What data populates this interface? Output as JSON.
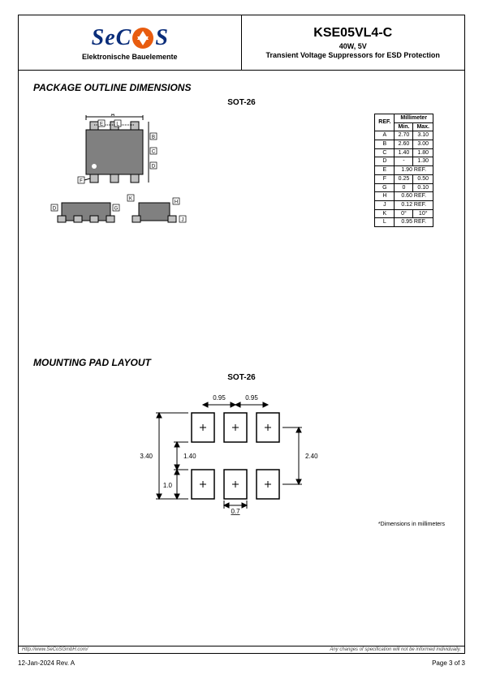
{
  "header": {
    "logo_subtitle": "Elektronische Bauelemente",
    "part_number": "KSE05VL4-C",
    "spec": "40W, 5V",
    "description": "Transient Voltage Suppressors for ESD Protection"
  },
  "sections": {
    "outline": {
      "title": "PACKAGE OUTLINE DIMENSIONS",
      "subtitle": "SOT-26"
    },
    "mount": {
      "title": "MOUNTING PAD LAYOUT",
      "subtitle": "SOT-26",
      "note": "*Dimensions in millimeters"
    }
  },
  "dim_table": {
    "header_ref": "REF.",
    "header_unit": "Millimeter",
    "header_min": "Min.",
    "header_max": "Max.",
    "rows": [
      {
        "ref": "A",
        "min": "2.70",
        "max": "3.10"
      },
      {
        "ref": "B",
        "min": "2.60",
        "max": "3.00"
      },
      {
        "ref": "C",
        "min": "1.40",
        "max": "1.80"
      },
      {
        "ref": "D",
        "min": "-",
        "max": "1.30"
      },
      {
        "ref": "E",
        "span": "1.90 REF."
      },
      {
        "ref": "F",
        "min": "0.25",
        "max": "0.50"
      },
      {
        "ref": "G",
        "min": "0",
        "max": "0.10"
      },
      {
        "ref": "H",
        "span": "0.60 REF."
      },
      {
        "ref": "J",
        "span": "0.12 REF."
      },
      {
        "ref": "K",
        "min": "0°",
        "max": "10°"
      },
      {
        "ref": "L",
        "span": "0.95 REF."
      }
    ]
  },
  "outline_diagram": {
    "labels": [
      "A",
      "E",
      "L",
      "B",
      "C",
      "F",
      "D",
      "G",
      "H",
      "K",
      "J"
    ],
    "body_color": "#808080",
    "pin_color": "#c0c0c0",
    "line_color": "#000000"
  },
  "mount_diagram": {
    "outer_h": "3.40",
    "gap_v": "1.40",
    "pad_h": "1.0",
    "pad_w": "0.7",
    "pitch_h": "0.95",
    "right_h": "2.40",
    "pad_fill": "#ffffff",
    "pad_stroke": "#000000",
    "cross_color": "#000000",
    "dim_color": "#000000"
  },
  "footer": {
    "url": "Http://www.SeCoSGmbH.com/",
    "disclaimer": "Any changes of specification will not be informed individually.",
    "date_rev": "12-Jan-2024 Rev. A",
    "page": "Page 3 of 3"
  }
}
